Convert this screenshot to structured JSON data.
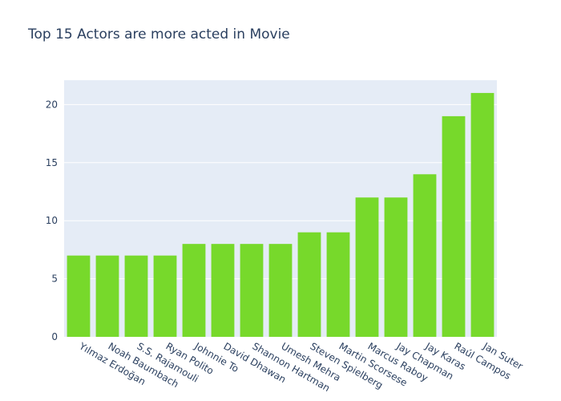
{
  "chart_data": {
    "type": "bar",
    "title": "Top 15 Actors are more acted in Movie",
    "xlabel": "",
    "ylabel": "",
    "categories": [
      "Yılmaz Erdoğan",
      "Noah Baumbach",
      "S.S. Rajamouli",
      "Ryan Polito",
      "Johnnie To",
      "David Dhawan",
      "Shannon Hartman",
      "Umesh Mehra",
      "Steven Spielberg",
      "Martin Scorsese",
      "Marcus Raboy",
      "Jay Chapman",
      "Jay Karas",
      "Raúl Campos",
      "Jan Suter"
    ],
    "values": [
      7,
      7,
      7,
      7,
      8,
      8,
      8,
      8,
      9,
      9,
      12,
      12,
      14,
      19,
      21
    ],
    "ylim": [
      0,
      22.1
    ],
    "yticks": [
      0,
      5,
      10,
      15,
      20
    ],
    "grid": true,
    "legend": "none",
    "colors": {
      "bar": "#77d92b",
      "plot_bg": "#e5ecf6",
      "grid": "#ffffff",
      "text": "#2a3f5f"
    }
  }
}
